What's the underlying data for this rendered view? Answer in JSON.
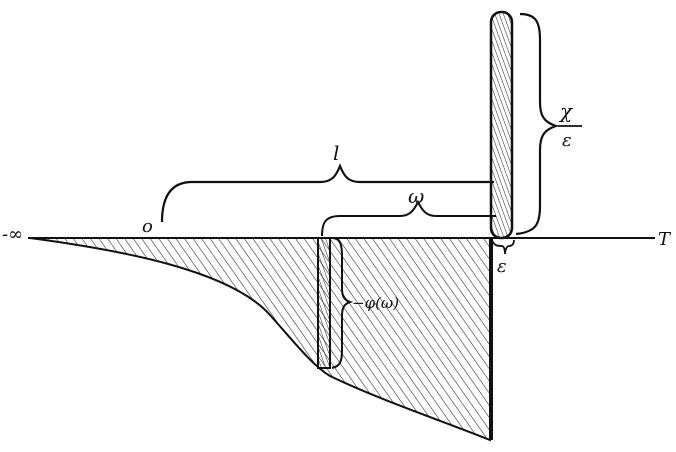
{
  "labels": {
    "neg_infinity": "-∞",
    "origin": "o",
    "axis": "T",
    "l": "l",
    "omega": "ω",
    "epsilon": "ε",
    "chi": "χ",
    "over_epsilon": "ε",
    "phi": "−φ(ω)"
  },
  "colors": {
    "ink": "#111111",
    "background": "#ffffff",
    "hatch": "#222222"
  }
}
